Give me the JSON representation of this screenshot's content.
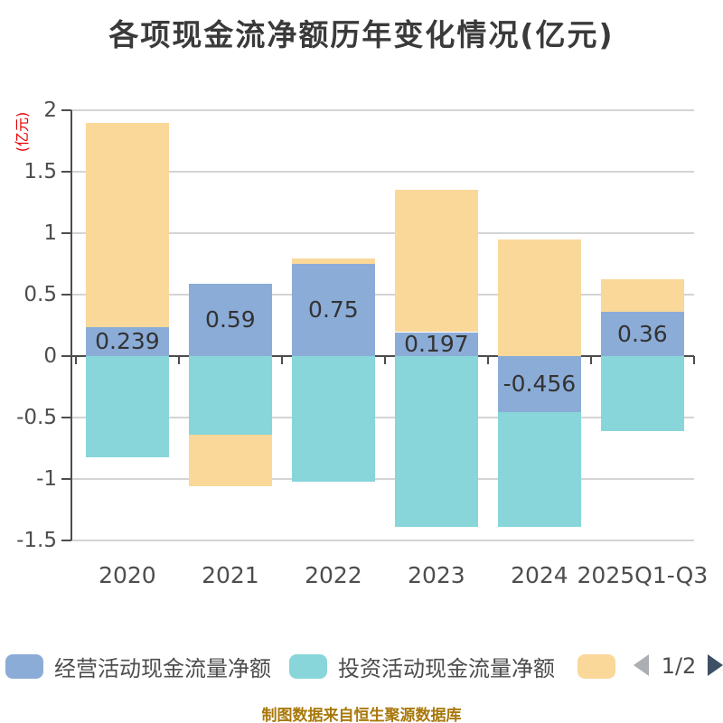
{
  "title": "各项现金流净额历年变化情况(亿元)",
  "y_axis": {
    "name": "(亿元)",
    "ticks": [
      "2",
      "1.5",
      "1",
      "0.5",
      "0",
      "-0.5",
      "-1",
      "-1.5"
    ]
  },
  "legend": {
    "items": [
      {
        "label": "经营活动现金流量净额",
        "color": "#8BACD7",
        "label_visible": true
      },
      {
        "label": "投资活动现金流量净额",
        "color": "#88D6DA",
        "label_visible": true
      },
      {
        "label": "",
        "color": "#FAD899",
        "label_visible": false
      }
    ],
    "pagination": {
      "text": "1/2",
      "prev_arrow_color": "#ABAFB3",
      "next_arrow_color": "#3E5064"
    }
  },
  "caption": "制图数据来自恒生聚源数据库",
  "colors": {
    "title": "#3A3A3A",
    "axis_label": "#4D4D4D",
    "axis_line": "#4D4D4D",
    "gridline": "#D4D4D4",
    "data_label": "#333333",
    "y_axis_name": "#E60000",
    "caption": "#A8780A"
  },
  "chart_data": {
    "type": "bar",
    "stacked": true,
    "title": "各项现金流净额历年变化情况(亿元)",
    "ylabel": "(亿元)",
    "ylim": [
      -1.5,
      2
    ],
    "ytick_step": 0.5,
    "grid": true,
    "legend_position": "bottom",
    "categories": [
      "2020",
      "2021",
      "2022",
      "2023",
      "2024",
      "2025Q1-Q3"
    ],
    "series": [
      {
        "name": "经营活动现金流量净额",
        "key": "operating",
        "color": "#8BACD7",
        "values": [
          0.239,
          0.59,
          0.75,
          0.197,
          -0.456,
          0.36
        ],
        "data_labels": [
          "0.239",
          "0.59",
          "0.75",
          "0.197",
          "-0.456",
          "0.36"
        ]
      },
      {
        "name": "投资活动现金流量净额",
        "key": "investing",
        "color": "#88D6DA",
        "values": [
          -0.82,
          -0.64,
          -1.02,
          -1.39,
          -0.93,
          -0.61
        ]
      },
      {
        "name": "",
        "key": "series3",
        "color": "#FAD899",
        "values": [
          1.66,
          -0.42,
          0.05,
          1.16,
          0.95,
          0.27
        ]
      }
    ]
  }
}
